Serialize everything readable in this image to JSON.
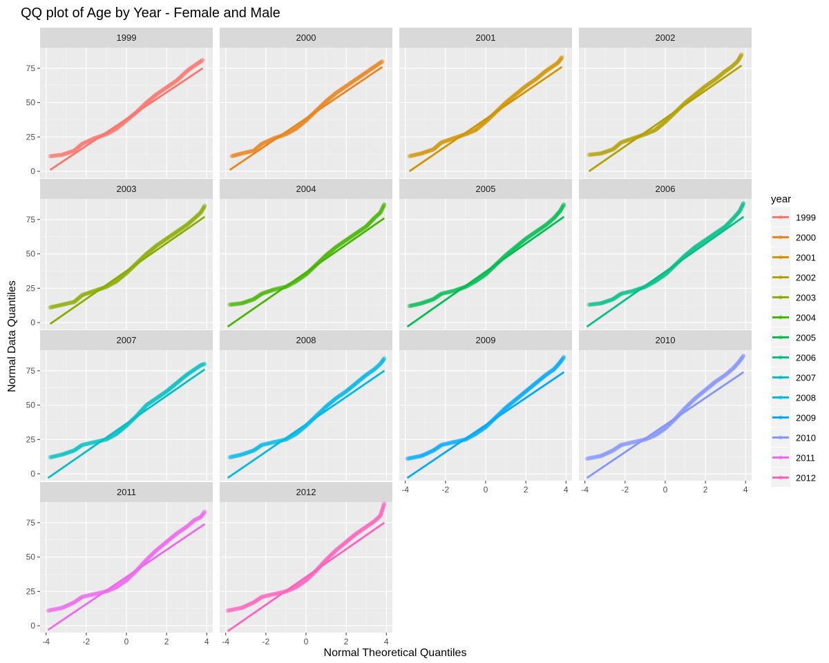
{
  "chart_data": {
    "type": "scatter",
    "subtype": "qq-facet",
    "title": "QQ plot of Age by Year - Female and Male",
    "xlabel": "Normal Theoretical Quantiles",
    "ylabel": "Normal Data Quantiles",
    "xlim": [
      -4.3,
      4.3
    ],
    "ylim": [
      -5,
      90
    ],
    "x_ticks": [
      "-4",
      "-2",
      "0",
      "2",
      "4"
    ],
    "y_ticks": [
      "0",
      "25",
      "50",
      "75"
    ],
    "grid": true,
    "facet_grid": {
      "ncol": 4,
      "nrow": 4
    },
    "legend": {
      "title": "year",
      "position": "right"
    },
    "series": [
      {
        "name": "1999",
        "color": "#F8766D",
        "points": [
          [
            -3.8,
            11
          ],
          [
            -3.2,
            12
          ],
          [
            -2.6,
            15
          ],
          [
            -2.2,
            20
          ],
          [
            -1.6,
            24
          ],
          [
            -1,
            27
          ],
          [
            -0.5,
            31
          ],
          [
            0,
            37
          ],
          [
            0.5,
            43
          ],
          [
            1,
            50
          ],
          [
            1.5,
            56
          ],
          [
            2,
            61
          ],
          [
            2.5,
            66
          ],
          [
            2.8,
            70
          ],
          [
            3.1,
            74
          ],
          [
            3.4,
            77
          ],
          [
            3.8,
            81
          ]
        ],
        "line": [
          [
            -3.8,
            1
          ],
          [
            3.8,
            75
          ]
        ]
      },
      {
        "name": "2000",
        "color": "#E7851E",
        "points": [
          [
            -3.7,
            11
          ],
          [
            -3.2,
            13
          ],
          [
            -2.6,
            15
          ],
          [
            -2.2,
            20
          ],
          [
            -1.6,
            24
          ],
          [
            -1,
            27
          ],
          [
            -0.5,
            31
          ],
          [
            0,
            37
          ],
          [
            0.5,
            44
          ],
          [
            1,
            51
          ],
          [
            1.5,
            57
          ],
          [
            2,
            62
          ],
          [
            2.5,
            67
          ],
          [
            3,
            72
          ],
          [
            3.3,
            75
          ],
          [
            3.6,
            78
          ],
          [
            3.8,
            80
          ]
        ],
        "line": [
          [
            -3.8,
            1
          ],
          [
            3.8,
            76
          ]
        ]
      },
      {
        "name": "2001",
        "color": "#D09400",
        "points": [
          [
            -3.8,
            11
          ],
          [
            -3.2,
            13
          ],
          [
            -2.6,
            16
          ],
          [
            -2.2,
            21
          ],
          [
            -1.6,
            24
          ],
          [
            -1,
            27
          ],
          [
            -0.5,
            30
          ],
          [
            0,
            36
          ],
          [
            0.5,
            43
          ],
          [
            1,
            50
          ],
          [
            1.5,
            56
          ],
          [
            2,
            62
          ],
          [
            2.5,
            67
          ],
          [
            3,
            73
          ],
          [
            3.3,
            76
          ],
          [
            3.6,
            79
          ],
          [
            3.8,
            83
          ]
        ],
        "line": [
          [
            -3.8,
            0
          ],
          [
            3.8,
            76
          ]
        ]
      },
      {
        "name": "2002",
        "color": "#B2A100",
        "points": [
          [
            -3.8,
            12
          ],
          [
            -3.2,
            13
          ],
          [
            -2.6,
            16
          ],
          [
            -2.2,
            21
          ],
          [
            -1.6,
            24
          ],
          [
            -1,
            27
          ],
          [
            -0.5,
            30
          ],
          [
            0,
            36
          ],
          [
            0.5,
            43
          ],
          [
            1,
            50
          ],
          [
            1.5,
            56
          ],
          [
            2,
            62
          ],
          [
            2.5,
            67
          ],
          [
            3,
            73
          ],
          [
            3.3,
            76
          ],
          [
            3.6,
            80
          ],
          [
            3.8,
            85
          ]
        ],
        "line": [
          [
            -3.8,
            0
          ],
          [
            3.8,
            77
          ]
        ]
      },
      {
        "name": "2003",
        "color": "#89AC00",
        "points": [
          [
            -3.8,
            11
          ],
          [
            -3.2,
            13
          ],
          [
            -2.6,
            15
          ],
          [
            -2.2,
            20
          ],
          [
            -1.6,
            23
          ],
          [
            -1,
            26
          ],
          [
            -0.5,
            30
          ],
          [
            0,
            36
          ],
          [
            0.5,
            43
          ],
          [
            1,
            50
          ],
          [
            1.5,
            56
          ],
          [
            2,
            61
          ],
          [
            2.5,
            66
          ],
          [
            3,
            71
          ],
          [
            3.4,
            76
          ],
          [
            3.7,
            80
          ],
          [
            3.9,
            85
          ]
        ],
        "line": [
          [
            -3.8,
            -1
          ],
          [
            3.9,
            77
          ]
        ]
      },
      {
        "name": "2004",
        "color": "#45B500",
        "points": [
          [
            -3.8,
            13
          ],
          [
            -3.2,
            14
          ],
          [
            -2.6,
            17
          ],
          [
            -2.2,
            21
          ],
          [
            -1.6,
            24
          ],
          [
            -1,
            26
          ],
          [
            -0.5,
            30
          ],
          [
            0,
            35
          ],
          [
            0.5,
            42
          ],
          [
            1,
            49
          ],
          [
            1.5,
            55
          ],
          [
            2,
            60
          ],
          [
            2.5,
            65
          ],
          [
            3,
            70
          ],
          [
            3.4,
            76
          ],
          [
            3.7,
            80
          ],
          [
            3.9,
            86
          ]
        ],
        "line": [
          [
            -3.9,
            -3
          ],
          [
            3.9,
            76
          ]
        ]
      },
      {
        "name": "2005",
        "color": "#00BC51",
        "points": [
          [
            -3.8,
            12
          ],
          [
            -3.2,
            14
          ],
          [
            -2.6,
            17
          ],
          [
            -2.2,
            21
          ],
          [
            -1.6,
            23
          ],
          [
            -1,
            26
          ],
          [
            -0.5,
            30
          ],
          [
            0,
            35
          ],
          [
            0.5,
            42
          ],
          [
            1,
            49
          ],
          [
            1.5,
            55
          ],
          [
            2,
            61
          ],
          [
            2.5,
            66
          ],
          [
            3,
            71
          ],
          [
            3.4,
            76
          ],
          [
            3.7,
            81
          ],
          [
            3.9,
            86
          ]
        ],
        "line": [
          [
            -3.9,
            -3
          ],
          [
            3.9,
            77
          ]
        ]
      },
      {
        "name": "2006",
        "color": "#00C087",
        "points": [
          [
            -3.8,
            13
          ],
          [
            -3.2,
            14
          ],
          [
            -2.6,
            17
          ],
          [
            -2.2,
            21
          ],
          [
            -1.6,
            23
          ],
          [
            -1,
            26
          ],
          [
            -0.5,
            30
          ],
          [
            0,
            35
          ],
          [
            0.5,
            42
          ],
          [
            1,
            49
          ],
          [
            1.5,
            55
          ],
          [
            2,
            60
          ],
          [
            2.5,
            65
          ],
          [
            3,
            70
          ],
          [
            3.4,
            76
          ],
          [
            3.7,
            81
          ],
          [
            3.9,
            87
          ]
        ],
        "line": [
          [
            -3.9,
            -3
          ],
          [
            3.9,
            77
          ]
        ]
      },
      {
        "name": "2007",
        "color": "#00BFC4",
        "points": [
          [
            -3.8,
            12
          ],
          [
            -3.2,
            14
          ],
          [
            -2.6,
            17
          ],
          [
            -2.2,
            21
          ],
          [
            -1.6,
            23
          ],
          [
            -1,
            25
          ],
          [
            -0.5,
            29
          ],
          [
            0,
            35
          ],
          [
            0.5,
            42
          ],
          [
            1,
            50
          ],
          [
            1.5,
            55
          ],
          [
            2,
            60
          ],
          [
            2.5,
            66
          ],
          [
            3,
            72
          ],
          [
            3.4,
            76
          ],
          [
            3.7,
            79
          ],
          [
            3.9,
            80
          ]
        ],
        "line": [
          [
            -3.9,
            -3
          ],
          [
            3.9,
            76
          ]
        ]
      },
      {
        "name": "2008",
        "color": "#00B8E7",
        "points": [
          [
            -3.8,
            12
          ],
          [
            -3.2,
            14
          ],
          [
            -2.6,
            17
          ],
          [
            -2.2,
            21
          ],
          [
            -1.6,
            23
          ],
          [
            -1,
            25
          ],
          [
            -0.5,
            29
          ],
          [
            0,
            35
          ],
          [
            0.5,
            42
          ],
          [
            1,
            49
          ],
          [
            1.5,
            55
          ],
          [
            2,
            60
          ],
          [
            2.5,
            66
          ],
          [
            3,
            72
          ],
          [
            3.4,
            76
          ],
          [
            3.7,
            80
          ],
          [
            3.9,
            84
          ]
        ],
        "line": [
          [
            -3.9,
            -3
          ],
          [
            3.9,
            75
          ]
        ]
      },
      {
        "name": "2009",
        "color": "#00A9FF",
        "points": [
          [
            -3.9,
            11
          ],
          [
            -3.2,
            13
          ],
          [
            -2.6,
            17
          ],
          [
            -2.2,
            21
          ],
          [
            -1.6,
            23
          ],
          [
            -1,
            25
          ],
          [
            -0.5,
            29
          ],
          [
            0,
            34
          ],
          [
            0.5,
            41
          ],
          [
            1,
            48
          ],
          [
            1.5,
            54
          ],
          [
            2,
            60
          ],
          [
            2.5,
            66
          ],
          [
            3,
            72
          ],
          [
            3.4,
            76
          ],
          [
            3.7,
            81
          ],
          [
            3.9,
            85
          ]
        ],
        "line": [
          [
            -3.9,
            -3
          ],
          [
            3.9,
            74
          ]
        ]
      },
      {
        "name": "2010",
        "color": "#8494FF",
        "points": [
          [
            -3.9,
            11
          ],
          [
            -3.2,
            13
          ],
          [
            -2.6,
            17
          ],
          [
            -2.2,
            21
          ],
          [
            -1.6,
            23
          ],
          [
            -1,
            25
          ],
          [
            -0.5,
            28
          ],
          [
            0,
            33
          ],
          [
            0.5,
            40
          ],
          [
            1,
            48
          ],
          [
            1.5,
            55
          ],
          [
            2,
            61
          ],
          [
            2.5,
            67
          ],
          [
            3,
            72
          ],
          [
            3.4,
            77
          ],
          [
            3.7,
            82
          ],
          [
            3.9,
            86
          ]
        ],
        "line": [
          [
            -3.9,
            -3
          ],
          [
            3.9,
            74
          ]
        ]
      },
      {
        "name": "2011",
        "color": "#ED68ED",
        "points": [
          [
            -3.9,
            11
          ],
          [
            -3.2,
            13
          ],
          [
            -2.6,
            17
          ],
          [
            -2.2,
            21
          ],
          [
            -1.6,
            23
          ],
          [
            -1,
            25
          ],
          [
            -0.5,
            28
          ],
          [
            0,
            33
          ],
          [
            0.5,
            40
          ],
          [
            1,
            48
          ],
          [
            1.5,
            55
          ],
          [
            2,
            61
          ],
          [
            2.5,
            67
          ],
          [
            3,
            72
          ],
          [
            3.4,
            77
          ],
          [
            3.7,
            79
          ],
          [
            3.9,
            83
          ]
        ],
        "line": [
          [
            -3.9,
            -3
          ],
          [
            3.9,
            74
          ]
        ]
      },
      {
        "name": "2012",
        "color": "#FF62BC",
        "points": [
          [
            -3.9,
            11
          ],
          [
            -3.2,
            13
          ],
          [
            -2.6,
            17
          ],
          [
            -2.2,
            21
          ],
          [
            -1.6,
            23
          ],
          [
            -1,
            25
          ],
          [
            -0.5,
            28
          ],
          [
            0,
            33
          ],
          [
            0.5,
            40
          ],
          [
            1,
            48
          ],
          [
            1.5,
            55
          ],
          [
            2,
            61
          ],
          [
            2.5,
            67
          ],
          [
            3,
            72
          ],
          [
            3.4,
            76
          ],
          [
            3.7,
            80
          ],
          [
            3.9,
            89
          ]
        ],
        "line": [
          [
            -3.9,
            -4
          ],
          [
            3.9,
            75
          ]
        ]
      }
    ]
  }
}
